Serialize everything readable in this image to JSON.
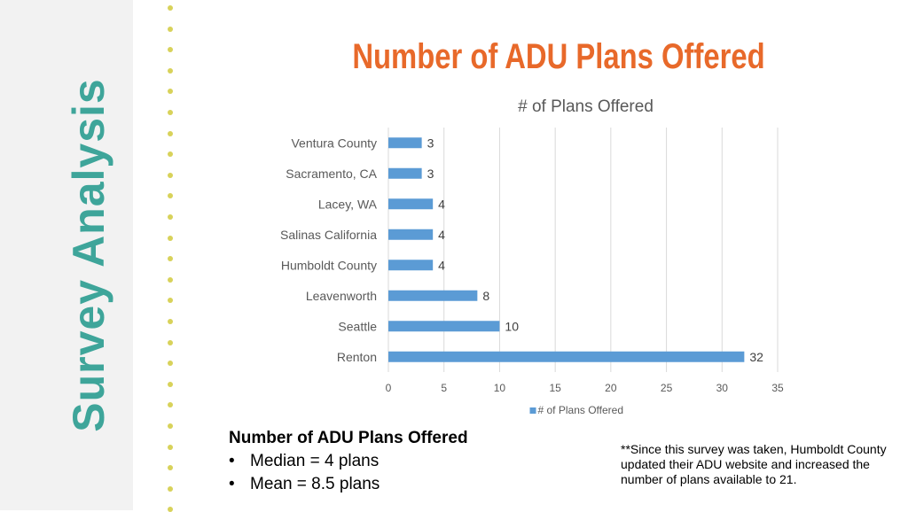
{
  "slide": {
    "side_title": "Survey Analysis",
    "title": "Number of ADU Plans Offered",
    "colors": {
      "title": "#e8692a",
      "side_title": "#3ea59a",
      "sidebar_bg": "#f2f2f2",
      "dots": "#d8d25a",
      "bar": "#5b9bd5"
    }
  },
  "chart_data": {
    "type": "bar",
    "orientation": "horizontal",
    "title": "# of Plans Offered",
    "categories": [
      "Ventura County",
      "Sacramento, CA",
      "Lacey, WA",
      "Salinas California",
      "Humboldt County",
      "Leavenworth",
      "Seattle",
      "Renton"
    ],
    "series": [
      {
        "name": "# of Plans Offered",
        "values": [
          3,
          3,
          4,
          4,
          4,
          8,
          10,
          32
        ]
      }
    ],
    "xlim": [
      0,
      35
    ],
    "xticks": [
      0,
      5,
      10,
      15,
      20,
      25,
      30,
      35
    ],
    "grid": true,
    "legend": "bottom",
    "data_labels": true
  },
  "summary": {
    "heading": "Number of ADU Plans Offered",
    "bullets": [
      "Median = 4 plans",
      "Mean = 8.5 plans"
    ]
  },
  "footnote": "**Since this survey was taken, Humboldt County updated their ADU website and increased the number of plans available to 21."
}
